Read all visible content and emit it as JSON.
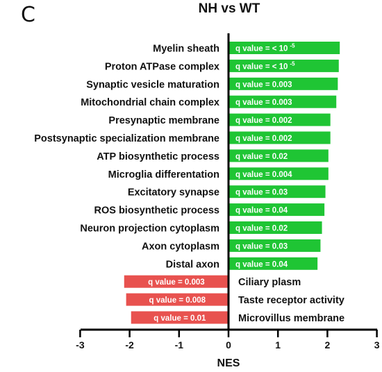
{
  "panel_letter": "C",
  "chart_data": {
    "type": "bar",
    "orientation": "horizontal",
    "title": "NH vs WT",
    "xlabel": "NES",
    "ylabel": "",
    "xlim": [
      -3,
      3
    ],
    "x_ticks": [
      "-3",
      "-2",
      "-1",
      "0",
      "1",
      "2",
      "3"
    ],
    "grid": false,
    "colors": {
      "positive": "#1fc534",
      "negative": "#e8524f",
      "axis": "#000000"
    },
    "bars": [
      {
        "category": "Myelin sheath",
        "value": 2.25,
        "q_text": "q value = < 10",
        "q_sup": "-5"
      },
      {
        "category": "Proton ATPase complex",
        "value": 2.23,
        "q_text": "q value = < 10",
        "q_sup": "-5"
      },
      {
        "category": "Synaptic vesicle maturation",
        "value": 2.21,
        "q_text": "q value = 0.003"
      },
      {
        "category": "Mitochondrial chain complex",
        "value": 2.18,
        "q_text": "q value = 0.003"
      },
      {
        "category": "Presynaptic membrane",
        "value": 2.06,
        "q_text": "q value = 0.002"
      },
      {
        "category": "Postsynaptic specialization membrane",
        "value": 2.06,
        "q_text": "q value = 0.002"
      },
      {
        "category": "ATP biosynthetic process",
        "value": 2.02,
        "q_text": "q value = 0.02"
      },
      {
        "category": "Microglia differentation",
        "value": 2.02,
        "q_text": "q value = 0.004"
      },
      {
        "category": "Excitatory synapse",
        "value": 1.96,
        "q_text": "q value = 0.03"
      },
      {
        "category": "ROS biosynthetic process",
        "value": 1.94,
        "q_text": "q value = 0.04"
      },
      {
        "category": "Neuron projection cytoplasm",
        "value": 1.89,
        "q_text": "q value = 0.02"
      },
      {
        "category": "Axon cytoplasm",
        "value": 1.86,
        "q_text": "q value = 0.03"
      },
      {
        "category": "Distal axon",
        "value": 1.8,
        "q_text": "q value = 0.04"
      },
      {
        "category": "Ciliary plasm",
        "value": -2.11,
        "q_text": "q value = 0.003"
      },
      {
        "category": "Taste receptor activity",
        "value": -2.07,
        "q_text": "q value = 0.008"
      },
      {
        "category": "Microvillus membrane",
        "value": -1.97,
        "q_text": "q value = 0.01"
      }
    ]
  }
}
